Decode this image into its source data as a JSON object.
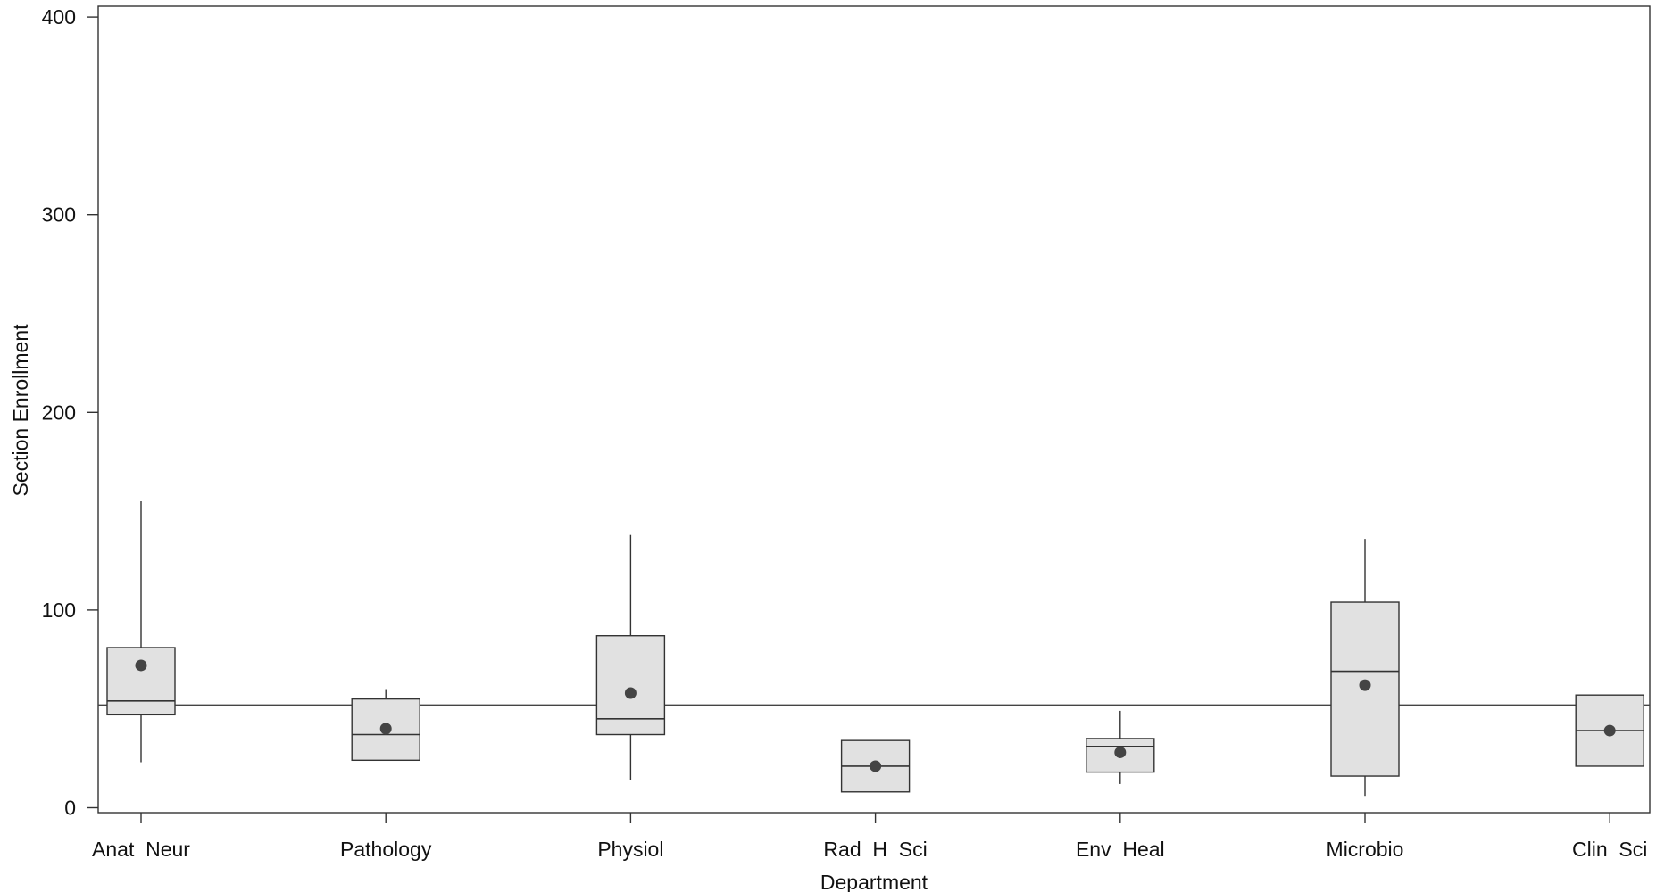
{
  "chart_data": {
    "type": "boxplot",
    "title": "",
    "xlabel": "Department",
    "ylabel": "Section Enrollment",
    "ylim": [
      -4,
      405
    ],
    "yticks": [
      0,
      100,
      200,
      300,
      400
    ],
    "grid": false,
    "reference_line": 52,
    "categories": [
      "Anat  Neur",
      "Pathology",
      "Physiol",
      "Rad  H  Sci",
      "Env  Heal",
      "Microbio",
      "Clin  Sci"
    ],
    "boxes": [
      {
        "whisker_low": 23,
        "q1": 47,
        "median": 54,
        "q3": 81,
        "whisker_high": 155,
        "mean": 72
      },
      {
        "whisker_low": 24,
        "q1": 24,
        "median": 37,
        "q3": 55,
        "whisker_high": 60,
        "mean": 40
      },
      {
        "whisker_low": 14,
        "q1": 37,
        "median": 45,
        "q3": 87,
        "whisker_high": 138,
        "mean": 58
      },
      {
        "whisker_low": 8,
        "q1": 8,
        "median": 21,
        "q3": 34,
        "whisker_high": 34,
        "mean": 21
      },
      {
        "whisker_low": 12,
        "q1": 18,
        "median": 31,
        "q3": 35,
        "whisker_high": 49,
        "mean": 28
      },
      {
        "whisker_low": 6,
        "q1": 16,
        "median": 69,
        "q3": 104,
        "whisker_high": 136,
        "mean": 62
      },
      {
        "whisker_low": 21,
        "q1": 21,
        "median": 39,
        "q3": 57,
        "whisker_high": 57,
        "mean": 39
      }
    ]
  }
}
